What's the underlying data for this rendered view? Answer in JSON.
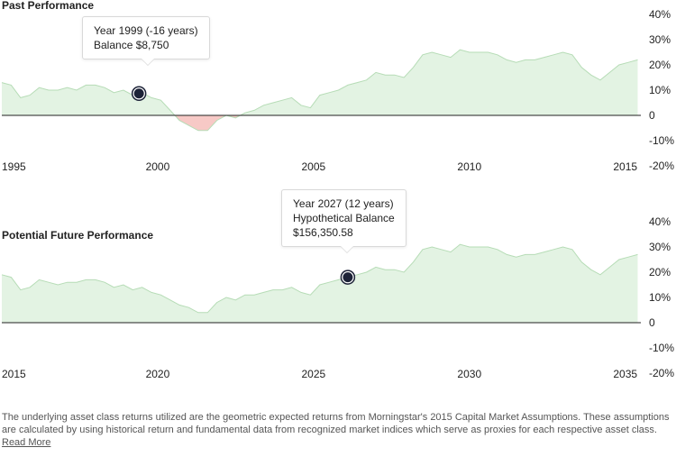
{
  "charts": [
    {
      "title": "Past Performance",
      "tooltip": [
        "Year 1999 (-16 years)",
        "Balance $8,750"
      ],
      "marker_x": 1999.4
    },
    {
      "title": "Potential Future Performance",
      "tooltip": [
        "Year 2027 (12 years)",
        "Hypothetical Balance",
        "$156,350.58"
      ],
      "marker_x": 2026.1
    }
  ],
  "colors": {
    "positive_fill": "#e3f3e3",
    "positive_line": "#b6dcb6",
    "negative_fill": "#f7c9c6",
    "negative_line": "#e59a95",
    "baseline": "#222222",
    "marker": "#1d2338"
  },
  "footnote": {
    "text": "The underlying asset class returns utilized are the geometric expected returns from Morningstar's 2015 Capital Market Assumptions. These assumptions are calculated by using historical return and fundamental data from recognized market indices which serve as proxies for each respective asset class.",
    "read_more": "Read More"
  },
  "chart_data": [
    {
      "type": "area",
      "title": "Past Performance",
      "xlabel": "",
      "ylabel": "",
      "xlim": [
        1995,
        2015.5
      ],
      "ylim": [
        -20,
        40
      ],
      "x_ticks": [
        1995,
        2000,
        2005,
        2010,
        2015
      ],
      "y_ticks": [
        "40%",
        "30%",
        "20%",
        "10%",
        "0",
        "-10%",
        "-20%"
      ],
      "y_tick_values": [
        40,
        30,
        20,
        10,
        0,
        -10,
        -20
      ],
      "grid": false,
      "series": [
        {
          "x": [
            1995.0,
            1995.3,
            1995.6,
            1995.9,
            1996.2,
            1996.5,
            1996.8,
            1997.1,
            1997.4,
            1997.7,
            1998.0,
            1998.3,
            1998.6,
            1998.9,
            1999.2,
            1999.5,
            1999.8,
            2000.1,
            2000.4,
            2000.7,
            2001.0,
            2001.3,
            2001.6,
            2001.9,
            2002.2,
            2002.5,
            2002.8,
            2003.1,
            2003.4,
            2003.7,
            2004.0,
            2004.3,
            2004.6,
            2004.9,
            2005.2,
            2005.5,
            2005.8,
            2006.1,
            2006.4,
            2006.7,
            2007.0,
            2007.3,
            2007.6,
            2007.9,
            2008.2,
            2008.5,
            2008.8,
            2009.1,
            2009.4,
            2009.7,
            2010.0,
            2010.3,
            2010.6,
            2010.9,
            2011.2,
            2011.5,
            2011.8,
            2012.1,
            2012.4,
            2012.7,
            2013.0,
            2013.3,
            2013.6,
            2013.9,
            2014.2,
            2014.5,
            2014.8,
            2015.1,
            2015.4
          ],
          "values": [
            13,
            12,
            7,
            8,
            11,
            10,
            10,
            11,
            10,
            12,
            12,
            11,
            9,
            10,
            8,
            9,
            7,
            6,
            2,
            -2,
            -4,
            -6,
            -6,
            -2,
            0,
            -1,
            1,
            2,
            4,
            5,
            6,
            7,
            4,
            3,
            8,
            9,
            10,
            12,
            13,
            14,
            17,
            16,
            16,
            15,
            19,
            24,
            25,
            24,
            23,
            26,
            25,
            25,
            25,
            24,
            22,
            21,
            22,
            22,
            23,
            24,
            25,
            24,
            19,
            16,
            14,
            17,
            20,
            21,
            22
          ]
        }
      ]
    },
    {
      "type": "area",
      "title": "Potential Future Performance",
      "xlabel": "",
      "ylabel": "",
      "xlim": [
        2015,
        2035.5
      ],
      "ylim": [
        -20,
        40
      ],
      "x_ticks": [
        2015,
        2020,
        2025,
        2030,
        2035
      ],
      "y_ticks": [
        "40%",
        "30%",
        "20%",
        "10%",
        "0",
        "-10%",
        "-20%"
      ],
      "y_tick_values": [
        40,
        30,
        20,
        10,
        0,
        -10,
        -20
      ],
      "grid": false,
      "series": [
        {
          "x": [
            2015.0,
            2015.3,
            2015.6,
            2015.9,
            2016.2,
            2016.5,
            2016.8,
            2017.1,
            2017.4,
            2017.7,
            2018.0,
            2018.3,
            2018.6,
            2018.9,
            2019.2,
            2019.5,
            2019.8,
            2020.1,
            2020.4,
            2020.7,
            2021.0,
            2021.3,
            2021.6,
            2021.9,
            2022.2,
            2022.5,
            2022.8,
            2023.1,
            2023.4,
            2023.7,
            2024.0,
            2024.3,
            2024.6,
            2024.9,
            2025.2,
            2025.5,
            2025.8,
            2026.1,
            2026.4,
            2026.7,
            2027.0,
            2027.3,
            2027.6,
            2027.9,
            2028.2,
            2028.5,
            2028.8,
            2029.1,
            2029.4,
            2029.7,
            2030.0,
            2030.3,
            2030.6,
            2030.9,
            2031.2,
            2031.5,
            2031.8,
            2032.1,
            2032.4,
            2032.7,
            2033.0,
            2033.3,
            2033.6,
            2033.9,
            2034.2,
            2034.5,
            2034.8,
            2035.1,
            2035.4
          ],
          "values": [
            19,
            18,
            13,
            14,
            17,
            16,
            15,
            16,
            16,
            17,
            17,
            16,
            14,
            15,
            13,
            14,
            12,
            11,
            9,
            7,
            6,
            4,
            4,
            8,
            10,
            9,
            11,
            11,
            12,
            13,
            13,
            14,
            12,
            11,
            15,
            16,
            17,
            18,
            19,
            20,
            22,
            21,
            21,
            20,
            24,
            29,
            30,
            29,
            28,
            31,
            30,
            30,
            30,
            29,
            27,
            26,
            27,
            27,
            28,
            29,
            30,
            29,
            24,
            21,
            19,
            22,
            25,
            26,
            27
          ]
        }
      ]
    }
  ]
}
